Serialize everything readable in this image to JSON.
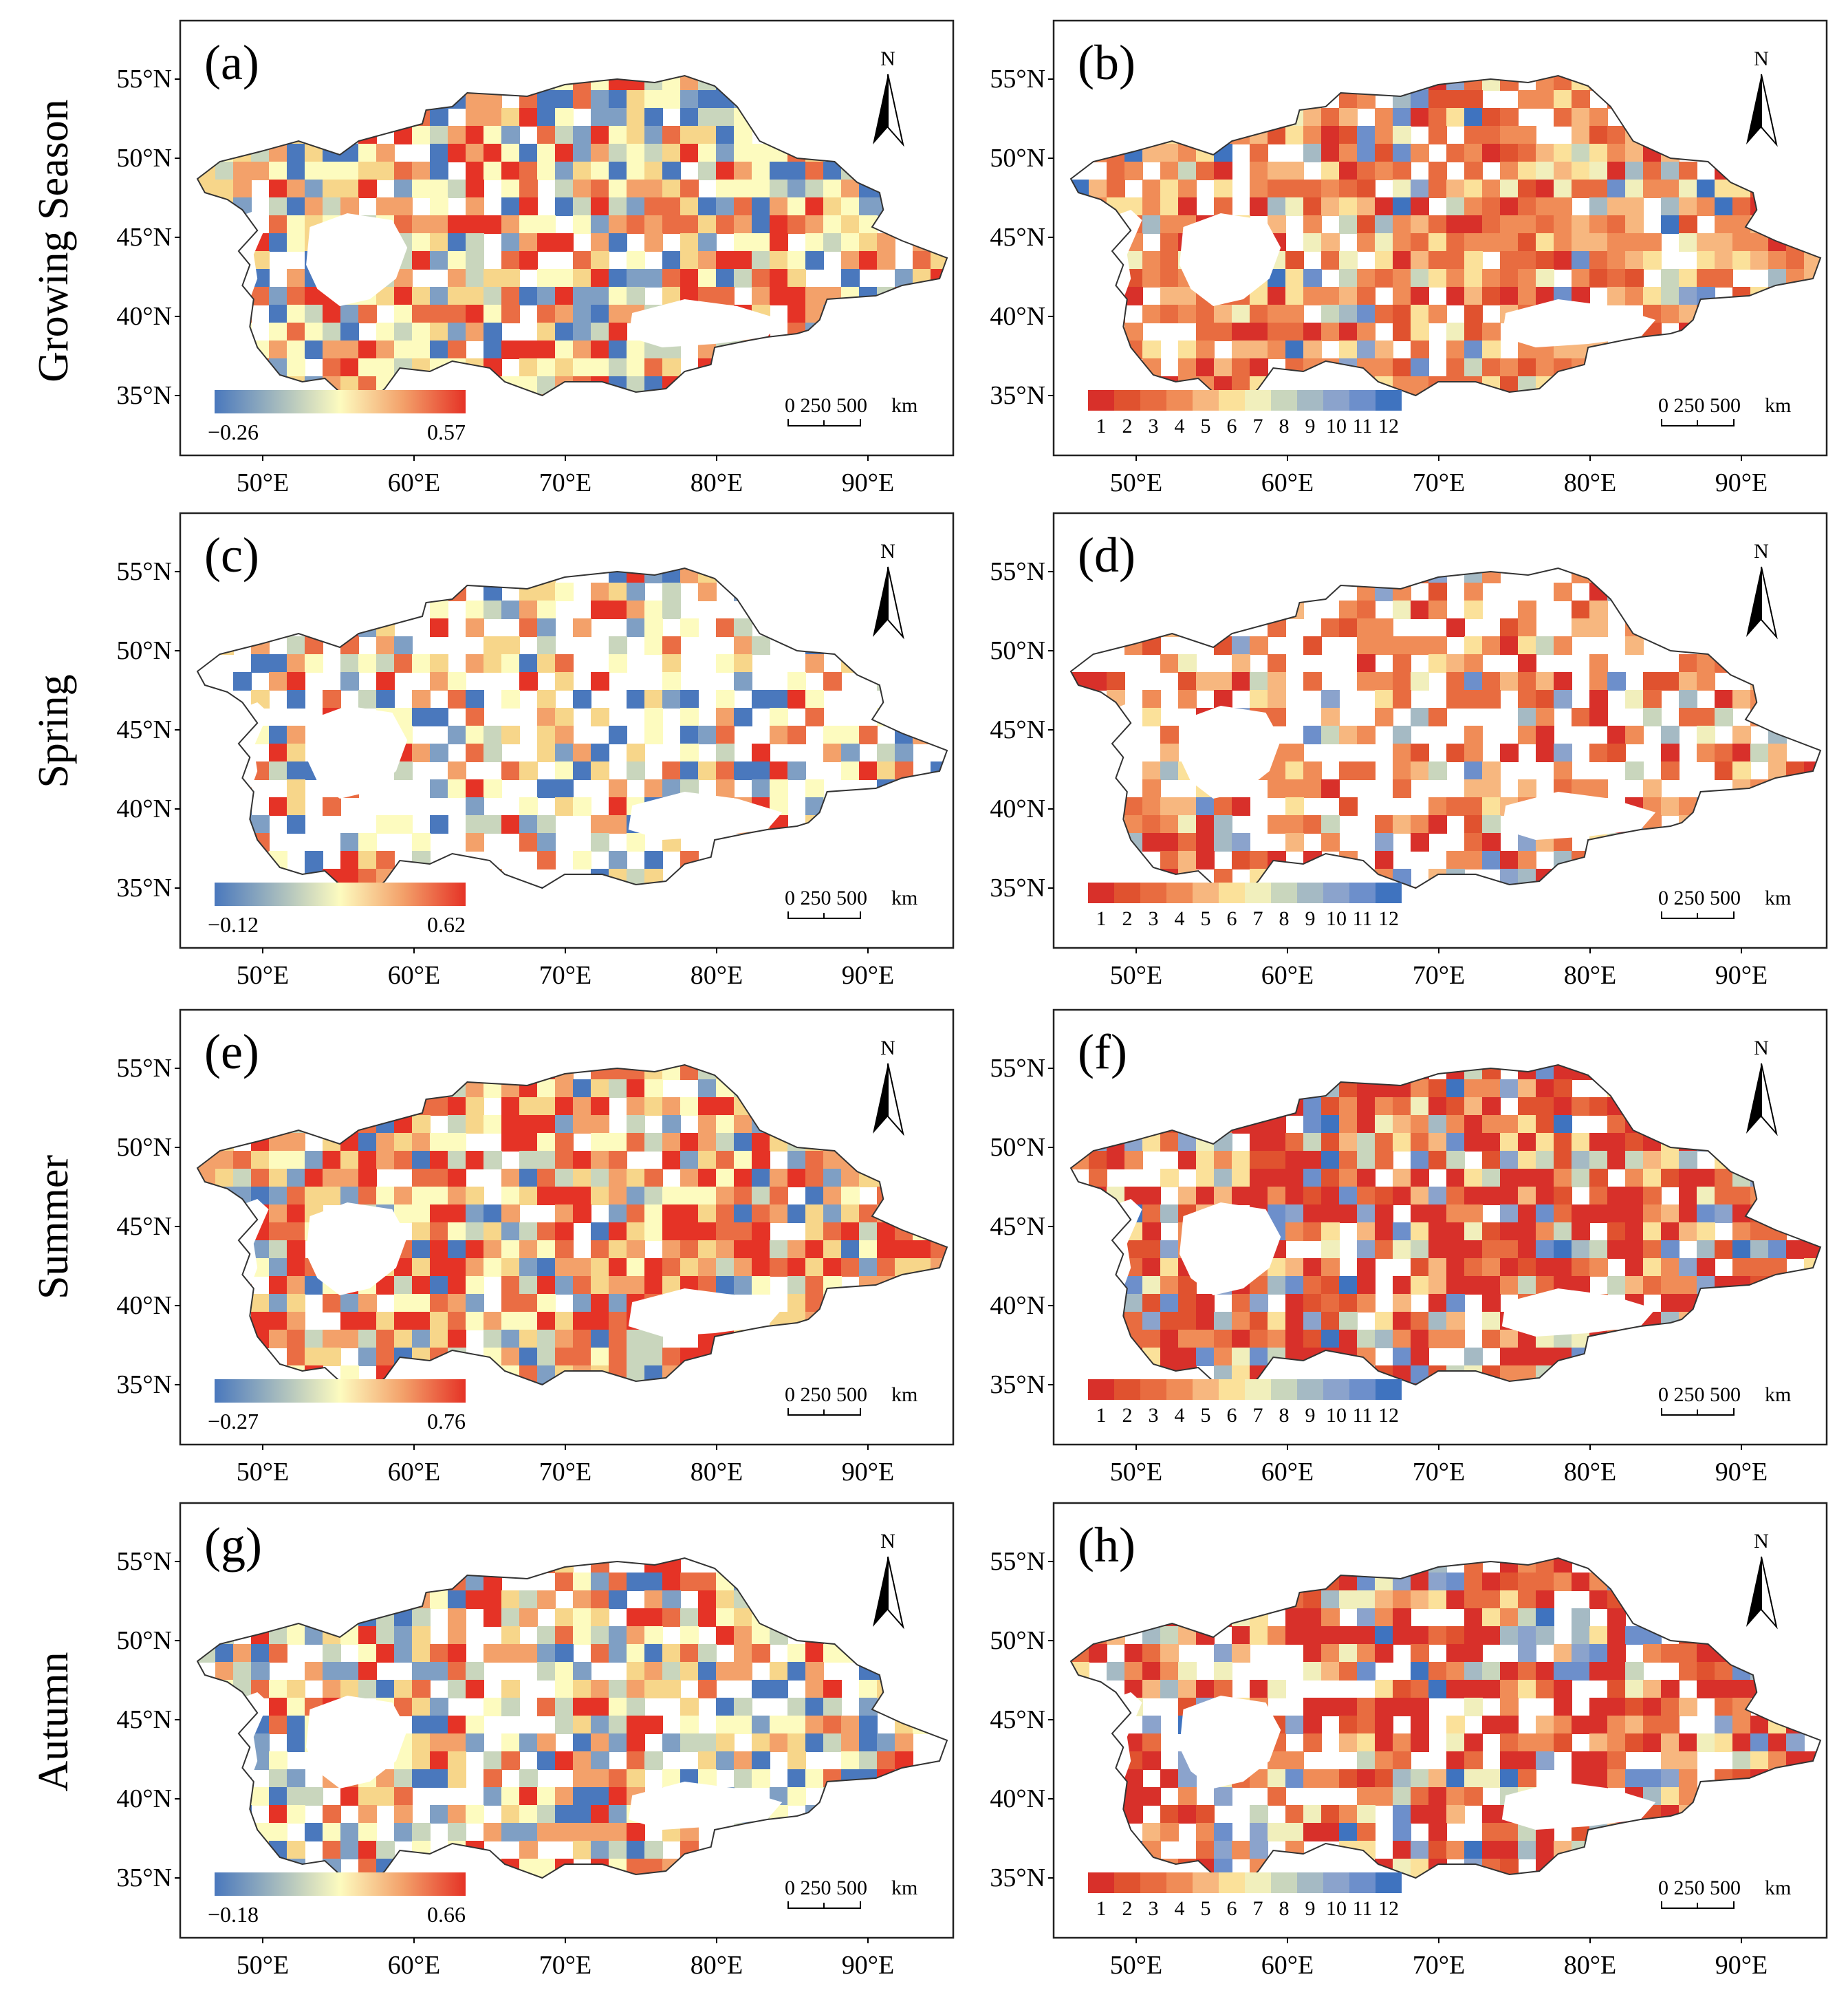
{
  "figure": {
    "row_labels": [
      "Growing Season",
      "Spring",
      "Summer",
      "Autumn"
    ],
    "lat_ticks": [
      "55°N",
      "50°N",
      "45°N",
      "40°N",
      "35°N"
    ],
    "lon_ticks": [
      "50°E",
      "60°E",
      "70°E",
      "80°E",
      "90°E"
    ],
    "north_label": "N",
    "scalebar": {
      "numbers": "0 250 500",
      "unit": "km"
    },
    "month_labels": [
      "1",
      "2",
      "3",
      "4",
      "5",
      "6",
      "7",
      "8",
      "9",
      "10",
      "11",
      "12"
    ],
    "colors": {
      "diverging": [
        "#4a78bd",
        "#fdfbbf",
        "#f3a16a",
        "#e53326"
      ],
      "months": [
        "#d8302a",
        "#e0522f",
        "#e86c40",
        "#f08c57",
        "#f7b77f",
        "#fbe19a",
        "#f1efbc",
        "#c9d6bd",
        "#a5bac4",
        "#8ba3cc",
        "#6d8fcb",
        "#3f73bf"
      ]
    },
    "panels": [
      {
        "label": "(a)",
        "type": "correlation",
        "legend_min": "−0.26",
        "legend_max": "0.57"
      },
      {
        "label": "(b)",
        "type": "month"
      },
      {
        "label": "(c)",
        "type": "correlation",
        "legend_min": "−0.12",
        "legend_max": "0.62"
      },
      {
        "label": "(d)",
        "type": "month"
      },
      {
        "label": "(e)",
        "type": "correlation",
        "legend_min": "−0.27",
        "legend_max": "0.76"
      },
      {
        "label": "(f)",
        "type": "month"
      },
      {
        "label": "(g)",
        "type": "correlation",
        "legend_min": "−0.18",
        "legend_max": "0.66"
      },
      {
        "label": "(h)",
        "type": "month"
      }
    ]
  }
}
